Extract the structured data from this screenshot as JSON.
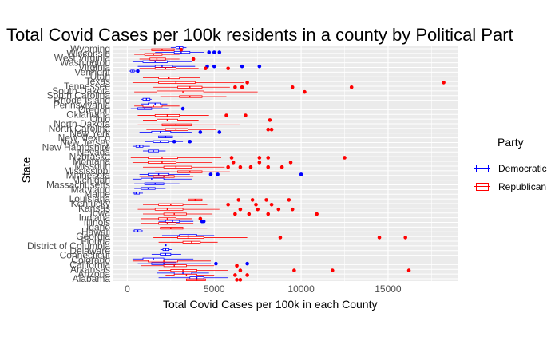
{
  "chart_data": {
    "type": "boxplot",
    "title": "Total Covid Cases per 100k residents in a county by Political Part",
    "xlabel": "Total Covid Cases per 100k in each County",
    "ylabel": "State",
    "xlim": [
      -800,
      19000
    ],
    "xticks": [
      0,
      5000,
      10000,
      15000
    ],
    "grid": true,
    "legend": {
      "title": "Party",
      "position": "right",
      "entries": [
        {
          "name": "Democratic",
          "color": "#0000ff"
        },
        {
          "name": "Republican",
          "color": "#ff0000"
        }
      ]
    },
    "colors": {
      "Democratic": "#0000ff",
      "Republican": "#ff0000",
      "panel": "#ebebeb",
      "grid": "#ffffff"
    },
    "categories": [
      "Alabama",
      "Arizona",
      "Arkansas",
      "California",
      "Colorado",
      "Connecticut",
      "Delaware",
      "District of Columbia",
      "Florida",
      "Georgia",
      "Hawaii",
      "Idaho",
      "Illinois",
      "Indiana",
      "Iowa",
      "Kansas",
      "Kentucky",
      "Louisiana",
      "Maine",
      "Maryland",
      "Massachusetts",
      "Michigan",
      "Minnesota",
      "Mississippi",
      "Missouri",
      "Montana",
      "Nebraska",
      "Nevada",
      "New Hampshire",
      "New Jersey",
      "New Mexico",
      "New York",
      "North Carolina",
      "North Dakota",
      "Ohio",
      "Oklahoma",
      "Oregon",
      "Pennsylvania",
      "Rhode Island",
      "South Carolina",
      "South Dakota",
      "Tennessee",
      "Texas",
      "Utah",
      "Vermont",
      "Virginia",
      "Washington",
      "West Virginia",
      "Wisconsin",
      "Wyoming"
    ],
    "series": [
      {
        "name": "Democratic",
        "boxes": [
          {
            "state": "Alabama",
            "min": 1800,
            "q1": 3600,
            "median": 4000,
            "q3": 4400,
            "max": 5800,
            "outliers": []
          },
          {
            "state": "Arizona",
            "min": 1700,
            "q1": 2700,
            "median": 3200,
            "q3": 3700,
            "max": 4700,
            "outliers": []
          },
          {
            "state": "California",
            "min": 600,
            "q1": 1400,
            "median": 2100,
            "q3": 2800,
            "max": 4800,
            "outliers": [
              5100,
              6900
            ]
          },
          {
            "state": "Colorado",
            "min": 300,
            "q1": 900,
            "median": 1500,
            "q3": 2100,
            "max": 3800,
            "outliers": []
          },
          {
            "state": "Connecticut",
            "min": 1400,
            "q1": 1900,
            "median": 2200,
            "q3": 2500,
            "max": 3100,
            "outliers": []
          },
          {
            "state": "Delaware",
            "min": 1900,
            "q1": 2050,
            "median": 2200,
            "q3": 2400,
            "max": 2600,
            "outliers": []
          },
          {
            "state": "District of Columbia",
            "min": 2200,
            "q1": 2200,
            "median": 2200,
            "q3": 2200,
            "max": 2200,
            "outliers": []
          },
          {
            "state": "Georgia",
            "min": 2000,
            "q1": 3000,
            "median": 3500,
            "q3": 4000,
            "max": 5000,
            "outliers": []
          },
          {
            "state": "Hawaii",
            "min": 300,
            "q1": 400,
            "median": 600,
            "q3": 800,
            "max": 900,
            "outliers": []
          },
          {
            "state": "Illinois",
            "min": 1800,
            "q1": 2200,
            "median": 2600,
            "q3": 3000,
            "max": 3800,
            "outliers": [
              4300,
              4400
            ]
          },
          {
            "state": "Maine",
            "min": 300,
            "q1": 400,
            "median": 500,
            "q3": 700,
            "max": 900,
            "outliers": []
          },
          {
            "state": "Maryland",
            "min": 400,
            "q1": 800,
            "median": 1200,
            "q3": 1600,
            "max": 2200,
            "outliers": []
          },
          {
            "state": "Massachusetts",
            "min": 400,
            "q1": 1000,
            "median": 1600,
            "q3": 2100,
            "max": 3000,
            "outliers": []
          },
          {
            "state": "Michigan",
            "min": 300,
            "q1": 800,
            "median": 1400,
            "q3": 2100,
            "max": 3700,
            "outliers": []
          },
          {
            "state": "Minnesota",
            "min": 700,
            "q1": 1200,
            "median": 1800,
            "q3": 2400,
            "max": 3600,
            "outliers": [
              4800,
              5200,
              10000
            ]
          },
          {
            "state": "Nevada",
            "min": 900,
            "q1": 1200,
            "median": 1500,
            "q3": 1800,
            "max": 2200,
            "outliers": []
          },
          {
            "state": "New Hampshire",
            "min": 300,
            "q1": 500,
            "median": 700,
            "q3": 900,
            "max": 1300,
            "outliers": []
          },
          {
            "state": "New Jersey",
            "min": 1000,
            "q1": 1500,
            "median": 1900,
            "q3": 2400,
            "max": 3200,
            "outliers": [
              3600,
              2700
            ]
          },
          {
            "state": "New Mexico",
            "min": 800,
            "q1": 1800,
            "median": 2200,
            "q3": 2600,
            "max": 3200,
            "outliers": []
          },
          {
            "state": "New York",
            "min": 700,
            "q1": 1400,
            "median": 1900,
            "q3": 2500,
            "max": 3700,
            "outliers": [
              4200,
              5300
            ]
          },
          {
            "state": "Oregon",
            "min": 200,
            "q1": 600,
            "median": 1000,
            "q3": 1400,
            "max": 2400,
            "outliers": [
              3200
            ]
          },
          {
            "state": "Pennsylvania",
            "min": 800,
            "q1": 1200,
            "median": 1600,
            "q3": 1900,
            "max": 2300,
            "outliers": []
          },
          {
            "state": "Rhode Island",
            "min": 800,
            "q1": 900,
            "median": 1100,
            "q3": 1300,
            "max": 1400,
            "outliers": []
          },
          {
            "state": "Vermont",
            "min": 100,
            "q1": 200,
            "median": 300,
            "q3": 400,
            "max": 500,
            "outliers": [
              600
            ]
          },
          {
            "state": "Virginia",
            "min": 600,
            "q1": 1600,
            "median": 2000,
            "q3": 2600,
            "max": 3900,
            "outliers": [
              4600,
              5000,
              6600,
              7600
            ]
          },
          {
            "state": "Washington",
            "min": 300,
            "q1": 900,
            "median": 1600,
            "q3": 2300,
            "max": 3700,
            "outliers": []
          },
          {
            "state": "Wisconsin",
            "min": 1600,
            "q1": 2700,
            "median": 3100,
            "q3": 3600,
            "max": 4400,
            "outliers": [
              4700,
              5000,
              5300
            ]
          },
          {
            "state": "Wyoming",
            "min": 2500,
            "q1": 2800,
            "median": 3000,
            "q3": 3200,
            "max": 3400,
            "outliers": []
          }
        ]
      },
      {
        "name": "Republican",
        "boxes": [
          {
            "state": "Alabama",
            "min": 2000,
            "q1": 3400,
            "median": 4000,
            "q3": 4500,
            "max": 5800,
            "outliers": [
              6300,
              6500
            ]
          },
          {
            "state": "Arizona",
            "min": 2200,
            "q1": 2700,
            "median": 3400,
            "q3": 4000,
            "max": 5000,
            "outliers": [
              6200,
              6900
            ]
          },
          {
            "state": "Arkansas",
            "min": 1800,
            "q1": 2500,
            "median": 3200,
            "q3": 4000,
            "max": 5800,
            "outliers": [
              6500,
              9600,
              11800,
              16200
            ]
          },
          {
            "state": "California",
            "min": 800,
            "q1": 2100,
            "median": 2700,
            "q3": 3400,
            "max": 5000,
            "outliers": [
              6300
            ]
          },
          {
            "state": "Colorado",
            "min": 300,
            "q1": 1200,
            "median": 2100,
            "q3": 2900,
            "max": 4800,
            "outliers": []
          },
          {
            "state": "Florida",
            "min": 1800,
            "q1": 3200,
            "median": 3700,
            "q3": 4200,
            "max": 5200,
            "outliers": []
          },
          {
            "state": "Georgia",
            "min": 1500,
            "q1": 2900,
            "median": 3500,
            "q3": 4400,
            "max": 6900,
            "outliers": [
              8800,
              14500,
              16000
            ]
          },
          {
            "state": "Idaho",
            "min": 800,
            "q1": 1900,
            "median": 2500,
            "q3": 3200,
            "max": 4600,
            "outliers": []
          },
          {
            "state": "Illinois",
            "min": 800,
            "q1": 1800,
            "median": 2300,
            "q3": 2800,
            "max": 3800,
            "outliers": []
          },
          {
            "state": "Indiana",
            "min": 800,
            "q1": 1800,
            "median": 2300,
            "q3": 2800,
            "max": 3700,
            "outliers": [
              4200
            ]
          },
          {
            "state": "Iowa",
            "min": 900,
            "q1": 2100,
            "median": 2700,
            "q3": 3400,
            "max": 4900,
            "outliers": [
              6200,
              7000,
              8100,
              10900
            ]
          },
          {
            "state": "Kansas",
            "min": 600,
            "q1": 1600,
            "median": 2300,
            "q3": 3200,
            "max": 5300,
            "outliers": [
              6500,
              7500,
              8700,
              9500
            ]
          },
          {
            "state": "Kentucky",
            "min": 900,
            "q1": 1800,
            "median": 2500,
            "q3": 3200,
            "max": 4600,
            "outliers": [
              5800,
              7400,
              8300
            ]
          },
          {
            "state": "Louisiana",
            "min": 2100,
            "q1": 3500,
            "median": 3900,
            "q3": 4300,
            "max": 5400,
            "outliers": [
              6400,
              7200,
              8000,
              9300
            ]
          },
          {
            "state": "Minnesota",
            "min": 700,
            "q1": 1500,
            "median": 2100,
            "q3": 2700,
            "max": 3800,
            "outliers": []
          },
          {
            "state": "Mississippi",
            "min": 1600,
            "q1": 2900,
            "median": 3600,
            "q3": 4300,
            "max": 5900,
            "outliers": []
          },
          {
            "state": "Missouri",
            "min": 900,
            "q1": 2100,
            "median": 2800,
            "q3": 3700,
            "max": 5600,
            "outliers": [
              5800,
              6500,
              7100,
              8100,
              8900
            ]
          },
          {
            "state": "Montana",
            "min": 300,
            "q1": 1200,
            "median": 2000,
            "q3": 2800,
            "max": 4900,
            "outliers": [
              6100,
              7600,
              9400
            ]
          },
          {
            "state": "Nebraska",
            "min": 200,
            "q1": 1200,
            "median": 2000,
            "q3": 2900,
            "max": 5400,
            "outliers": [
              6000,
              7600,
              8100,
              12500
            ]
          },
          {
            "state": "North Carolina",
            "min": 1100,
            "q1": 2200,
            "median": 2800,
            "q3": 3500,
            "max": 5100,
            "outliers": [
              8100,
              8300
            ]
          },
          {
            "state": "North Dakota",
            "min": 600,
            "q1": 2000,
            "median": 2800,
            "q3": 3700,
            "max": 6500,
            "outliers": []
          },
          {
            "state": "Ohio",
            "min": 900,
            "q1": 1700,
            "median": 2300,
            "q3": 2900,
            "max": 4100,
            "outliers": [
              8200
            ]
          },
          {
            "state": "Oklahoma",
            "min": 600,
            "q1": 1600,
            "median": 2300,
            "q3": 3000,
            "max": 4700,
            "outliers": [
              5700,
              6800
            ]
          },
          {
            "state": "Pennsylvania",
            "min": 400,
            "q1": 900,
            "median": 1500,
            "q3": 2000,
            "max": 3000,
            "outliers": []
          },
          {
            "state": "South Carolina",
            "min": 1900,
            "q1": 3000,
            "median": 3600,
            "q3": 4300,
            "max": 5700,
            "outliers": []
          },
          {
            "state": "South Dakota",
            "min": 400,
            "q1": 1700,
            "median": 3200,
            "q3": 4400,
            "max": 7500,
            "outliers": [
              10200
            ]
          },
          {
            "state": "Tennessee",
            "min": 1500,
            "q1": 2900,
            "median": 3600,
            "q3": 4300,
            "max": 5900,
            "outliers": [
              6200,
              6600,
              9500,
              12900
            ]
          },
          {
            "state": "Texas",
            "min": 300,
            "q1": 1800,
            "median": 2800,
            "q3": 3900,
            "max": 6700,
            "outliers": [
              6900,
              18200
            ]
          },
          {
            "state": "Utah",
            "min": 900,
            "q1": 1800,
            "median": 2400,
            "q3": 3000,
            "max": 4200,
            "outliers": []
          },
          {
            "state": "Virginia",
            "min": 700,
            "q1": 1600,
            "median": 2200,
            "q3": 2800,
            "max": 4100,
            "outliers": [
              4500,
              5800
            ]
          },
          {
            "state": "West Virginia",
            "min": 700,
            "q1": 1300,
            "median": 1700,
            "q3": 2200,
            "max": 3000,
            "outliers": [
              3800
            ]
          },
          {
            "state": "Wisconsin",
            "min": 400,
            "q1": 1000,
            "median": 1500,
            "q3": 2000,
            "max": 3000,
            "outliers": []
          },
          {
            "state": "Wyoming",
            "min": 700,
            "q1": 1400,
            "median": 2000,
            "q3": 2700,
            "max": 3300,
            "outliers": [
              3100
            ]
          }
        ]
      }
    ]
  }
}
